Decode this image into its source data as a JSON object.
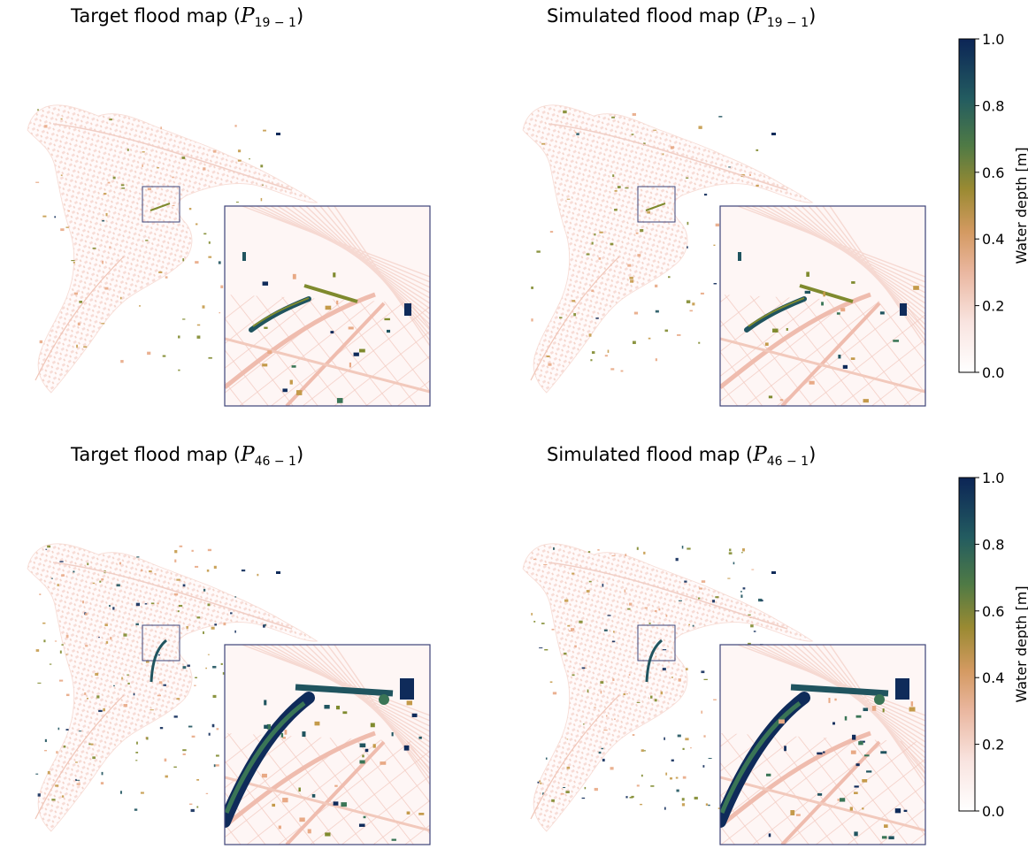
{
  "panels": [
    {
      "title_prefix": "Target flood map (",
      "symbol": "P",
      "subscript": "19 − 1",
      "title_suffix": ")",
      "depth_level": "low"
    },
    {
      "title_prefix": "Simulated flood map (",
      "symbol": "P",
      "subscript": "19 − 1",
      "title_suffix": ")",
      "depth_level": "low"
    },
    {
      "title_prefix": "Target flood map (",
      "symbol": "P",
      "subscript": "46 − 1",
      "title_suffix": ")",
      "depth_level": "high"
    },
    {
      "title_prefix": "Simulated flood map (",
      "symbol": "P",
      "subscript": "46 − 1",
      "title_suffix": ")",
      "depth_level": "high"
    }
  ],
  "colorbars": [
    {
      "label": "Water depth [m]",
      "ticks": [
        "0.0",
        "0.2",
        "0.4",
        "0.6",
        "0.8",
        "1.0"
      ],
      "range": [
        0.0,
        1.0
      ]
    },
    {
      "label": "Water depth [m]",
      "ticks": [
        "0.0",
        "0.2",
        "0.4",
        "0.6",
        "0.8",
        "1.0"
      ],
      "range": [
        0.0,
        1.0
      ]
    }
  ],
  "colormap": [
    "#ffffff",
    "#f7d6d0",
    "#e8a985",
    "#c49a4a",
    "#7f8a2e",
    "#3a7556",
    "#20545f",
    "#0f2b5a"
  ]
}
